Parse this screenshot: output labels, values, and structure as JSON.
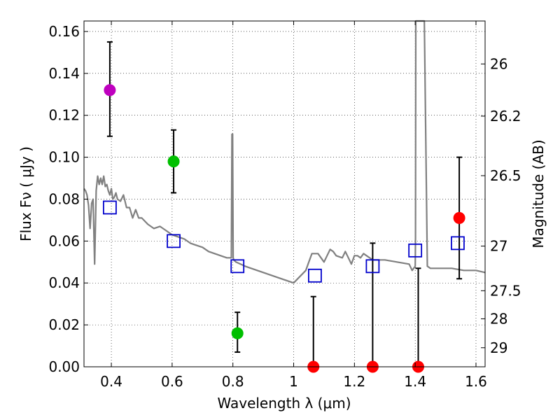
{
  "chart_data": {
    "type": "scatter",
    "xlabel": "Wavelength  λ (μm)",
    "ylabel": "Flux  Fν  ( μJy )",
    "y2label": "Magnitude (AB)",
    "xlim": [
      0.31,
      1.63
    ],
    "ylim": [
      0.0,
      0.165
    ],
    "grid": true,
    "x_ticks": [
      0.4,
      0.6,
      0.8,
      1.0,
      1.2,
      1.4,
      1.6
    ],
    "x_tick_labels": [
      "0.4",
      "0.6",
      "0.8",
      "1",
      "1.2",
      "1.4",
      "1.6"
    ],
    "y_ticks": [
      0.0,
      0.02,
      0.04,
      0.06,
      0.08,
      0.1,
      0.12,
      0.14,
      0.16
    ],
    "y_tick_labels": [
      "0.00",
      "0.02",
      "0.04",
      "0.06",
      "0.08",
      "0.10",
      "0.12",
      "0.14",
      "0.16"
    ],
    "y2_ticks": [
      {
        "flux": 0.1445,
        "label": "26"
      },
      {
        "flux": 0.1196,
        "label": "26.2"
      },
      {
        "flux": 0.0912,
        "label": "26.5"
      },
      {
        "flux": 0.0576,
        "label": "27"
      },
      {
        "flux": 0.0363,
        "label": "27.5"
      },
      {
        "flux": 0.0229,
        "label": "28"
      },
      {
        "flux": 0.0091,
        "label": "29"
      }
    ],
    "observed": [
      {
        "x": 0.395,
        "y": 0.132,
        "lo": 0.11,
        "hi": 0.155,
        "color": "#bf00bf"
      },
      {
        "x": 0.605,
        "y": 0.098,
        "lo": 0.083,
        "hi": 0.113,
        "color": "#00bf00"
      },
      {
        "x": 0.815,
        "y": 0.016,
        "lo": 0.007,
        "hi": 0.026,
        "color": "#00bf00"
      },
      {
        "x": 1.065,
        "y": 0.0,
        "lo": 0.0,
        "hi": 0.0335,
        "color": "#ff0000"
      },
      {
        "x": 1.26,
        "y": 0.0,
        "lo": 0.0,
        "hi": 0.059,
        "color": "#ff0000"
      },
      {
        "x": 1.41,
        "y": 0.0,
        "lo": 0.0,
        "hi": 0.047,
        "color": "#ff0000"
      },
      {
        "x": 1.545,
        "y": 0.071,
        "lo": 0.042,
        "hi": 0.1,
        "color": "#ff0000"
      }
    ],
    "model_photometry": [
      {
        "x": 0.395,
        "y": 0.076
      },
      {
        "x": 0.605,
        "y": 0.06
      },
      {
        "x": 0.815,
        "y": 0.048
      },
      {
        "x": 1.07,
        "y": 0.0435
      },
      {
        "x": 1.26,
        "y": 0.048
      },
      {
        "x": 1.4,
        "y": 0.0555
      },
      {
        "x": 1.54,
        "y": 0.059
      }
    ],
    "spectrum": {
      "color": "#808080",
      "x": [
        0.31,
        0.315,
        0.32,
        0.325,
        0.33,
        0.335,
        0.34,
        0.345,
        0.35,
        0.355,
        0.36,
        0.365,
        0.37,
        0.375,
        0.38,
        0.385,
        0.39,
        0.395,
        0.4,
        0.405,
        0.41,
        0.415,
        0.42,
        0.43,
        0.44,
        0.45,
        0.46,
        0.47,
        0.48,
        0.49,
        0.5,
        0.52,
        0.54,
        0.56,
        0.58,
        0.6,
        0.62,
        0.64,
        0.66,
        0.68,
        0.7,
        0.72,
        0.74,
        0.76,
        0.78,
        0.79,
        0.795,
        0.797,
        0.799,
        0.801,
        0.803,
        0.81,
        0.84,
        0.88,
        0.92,
        0.96,
        1.0,
        1.04,
        1.05,
        1.06,
        1.08,
        1.1,
        1.12,
        1.13,
        1.14,
        1.16,
        1.17,
        1.18,
        1.19,
        1.2,
        1.21,
        1.22,
        1.23,
        1.24,
        1.26,
        1.3,
        1.34,
        1.38,
        1.39,
        1.4,
        1.401,
        1.402,
        1.405,
        1.41,
        1.42,
        1.43,
        1.44,
        1.45,
        1.48,
        1.52,
        1.56,
        1.6,
        1.63
      ],
      "y": [
        0.085,
        0.084,
        0.082,
        0.077,
        0.066,
        0.078,
        0.08,
        0.049,
        0.084,
        0.091,
        0.087,
        0.09,
        0.087,
        0.091,
        0.086,
        0.087,
        0.084,
        0.082,
        0.085,
        0.08,
        0.081,
        0.083,
        0.08,
        0.079,
        0.082,
        0.076,
        0.076,
        0.071,
        0.075,
        0.071,
        0.071,
        0.068,
        0.066,
        0.067,
        0.065,
        0.063,
        0.062,
        0.061,
        0.059,
        0.058,
        0.057,
        0.055,
        0.054,
        0.053,
        0.052,
        0.052,
        0.052,
        0.111,
        0.111,
        0.052,
        0.051,
        0.05,
        0.048,
        0.046,
        0.044,
        0.042,
        0.04,
        0.046,
        0.05,
        0.054,
        0.054,
        0.05,
        0.056,
        0.055,
        0.053,
        0.052,
        0.055,
        0.052,
        0.049,
        0.053,
        0.053,
        0.052,
        0.054,
        0.053,
        0.051,
        0.051,
        0.05,
        0.049,
        0.046,
        0.048,
        0.062,
        0.165,
        0.165,
        0.165,
        0.165,
        0.165,
        0.048,
        0.047,
        0.047,
        0.047,
        0.046,
        0.046,
        0.045
      ]
    }
  }
}
